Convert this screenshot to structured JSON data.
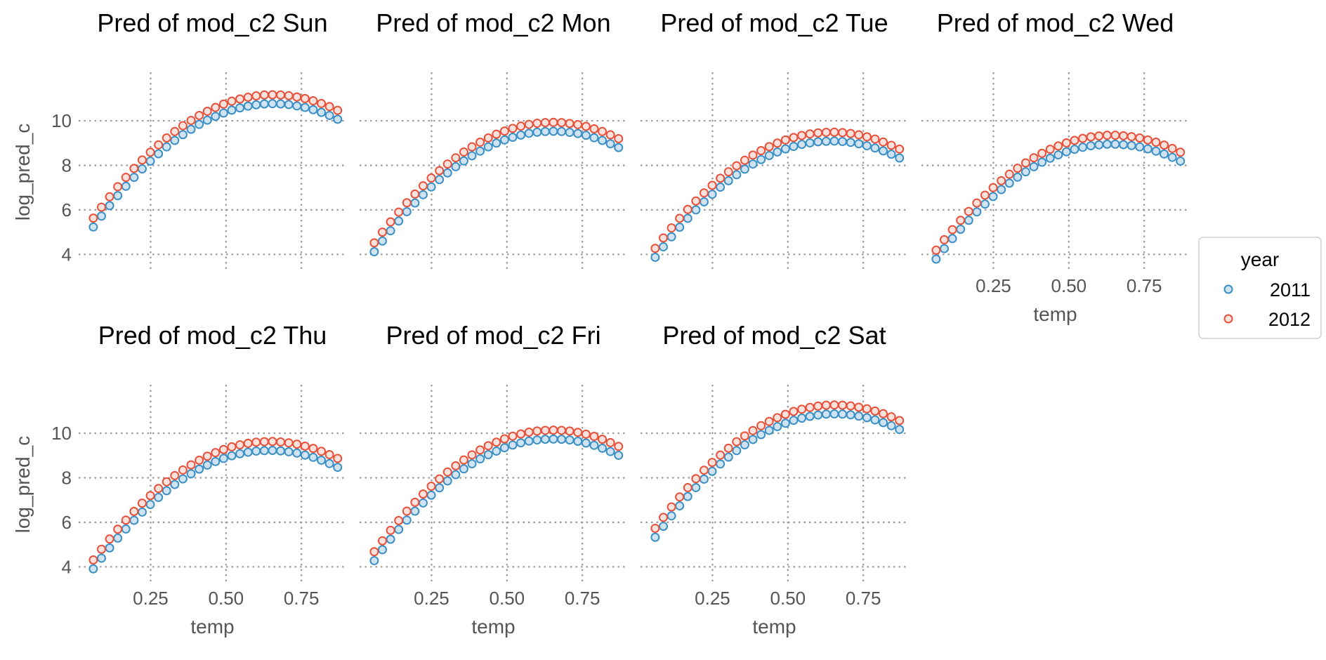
{
  "chart_data": {
    "type": "scatter",
    "layout": "facet-grid",
    "x_label": "temp",
    "y_label": "log_pred_c",
    "xlim": [
      0.03,
      0.88
    ],
    "ylim": [
      3.6,
      11.8
    ],
    "x_ticks": [
      0.25,
      0.5,
      0.75
    ],
    "x_tick_labels": [
      "0.25",
      "0.50",
      "0.75"
    ],
    "y_ticks": [
      4,
      6,
      8,
      10
    ],
    "y_tick_labels": [
      "4",
      "6",
      "8",
      "10"
    ],
    "grid": true,
    "legend": {
      "title": "year",
      "placement": "right",
      "entries": [
        {
          "label": "2011",
          "fill": "#cfe3f2",
          "stroke": "#3a8fc5"
        },
        {
          "label": "2012",
          "fill": "#fbe2dc",
          "stroke": "#e8503a"
        }
      ]
    },
    "x_values": [
      0.06,
      0.087,
      0.114,
      0.141,
      0.168,
      0.195,
      0.222,
      0.249,
      0.276,
      0.303,
      0.33,
      0.357,
      0.384,
      0.411,
      0.438,
      0.465,
      0.492,
      0.519,
      0.546,
      0.573,
      0.6,
      0.627,
      0.654,
      0.681,
      0.708,
      0.735,
      0.762,
      0.789,
      0.816,
      0.843,
      0.87
    ],
    "panels": [
      {
        "title": "Pred of mod_c2 Sun",
        "series": [
          {
            "name": "2011",
            "y": [
              5.23,
              5.72,
              6.19,
              6.64,
              7.06,
              7.46,
              7.84,
              8.19,
              8.52,
              8.83,
              9.12,
              9.38,
              9.62,
              9.84,
              10.03,
              10.2,
              10.35,
              10.48,
              10.58,
              10.66,
              10.72,
              10.76,
              10.77,
              10.76,
              10.73,
              10.67,
              10.6,
              10.5,
              10.38,
              10.24,
              10.07
            ]
          },
          {
            "name": "2012",
            "y": [
              5.63,
              6.12,
              6.59,
              7.04,
              7.46,
              7.86,
              8.24,
              8.59,
              8.92,
              9.23,
              9.52,
              9.78,
              10.02,
              10.24,
              10.43,
              10.6,
              10.75,
              10.88,
              10.98,
              11.06,
              11.12,
              11.16,
              11.17,
              11.16,
              11.13,
              11.07,
              11.0,
              10.9,
              10.78,
              10.64,
              10.47
            ]
          }
        ]
      },
      {
        "title": "Pred of mod_c2 Mon",
        "series": [
          {
            "name": "2011",
            "y": [
              4.12,
              4.6,
              5.06,
              5.5,
              5.92,
              6.31,
              6.68,
              7.03,
              7.36,
              7.66,
              7.94,
              8.2,
              8.43,
              8.64,
              8.83,
              9.0,
              9.14,
              9.26,
              9.36,
              9.44,
              9.49,
              9.52,
              9.53,
              9.52,
              9.48,
              9.43,
              9.35,
              9.24,
              9.12,
              8.97,
              8.8
            ]
          },
          {
            "name": "2012",
            "y": [
              4.52,
              5.0,
              5.46,
              5.9,
              6.32,
              6.71,
              7.08,
              7.43,
              7.76,
              8.06,
              8.34,
              8.6,
              8.83,
              9.04,
              9.23,
              9.4,
              9.54,
              9.66,
              9.76,
              9.84,
              9.89,
              9.92,
              9.93,
              9.92,
              9.88,
              9.83,
              9.75,
              9.64,
              9.52,
              9.37,
              9.2
            ]
          }
        ]
      },
      {
        "title": "Pred of mod_c2 Tue",
        "series": [
          {
            "name": "2011",
            "y": [
              3.87,
              4.34,
              4.79,
              5.22,
              5.62,
              6.0,
              6.36,
              6.7,
              7.02,
              7.31,
              7.58,
              7.83,
              8.06,
              8.26,
              8.44,
              8.6,
              8.74,
              8.85,
              8.94,
              9.01,
              9.06,
              9.08,
              9.09,
              9.07,
              9.03,
              8.97,
              8.88,
              8.78,
              8.65,
              8.5,
              8.33
            ]
          },
          {
            "name": "2012",
            "y": [
              4.27,
              4.74,
              5.19,
              5.62,
              6.02,
              6.4,
              6.76,
              7.1,
              7.42,
              7.71,
              7.98,
              8.23,
              8.46,
              8.66,
              8.84,
              9.0,
              9.14,
              9.25,
              9.34,
              9.41,
              9.46,
              9.48,
              9.49,
              9.47,
              9.43,
              9.37,
              9.28,
              9.18,
              9.05,
              8.9,
              8.73
            ]
          }
        ]
      },
      {
        "title": "Pred of mod_c2 Wed",
        "series": [
          {
            "name": "2011",
            "y": [
              3.79,
              4.26,
              4.71,
              5.13,
              5.53,
              5.91,
              6.26,
              6.6,
              6.91,
              7.2,
              7.47,
              7.71,
              7.94,
              8.14,
              8.32,
              8.47,
              8.61,
              8.72,
              8.81,
              8.88,
              8.92,
              8.95,
              8.95,
              8.93,
              8.89,
              8.83,
              8.74,
              8.64,
              8.51,
              8.36,
              8.19
            ]
          },
          {
            "name": "2012",
            "y": [
              4.19,
              4.66,
              5.11,
              5.53,
              5.93,
              6.31,
              6.66,
              7.0,
              7.31,
              7.6,
              7.87,
              8.11,
              8.34,
              8.54,
              8.72,
              8.87,
              9.01,
              9.12,
              9.21,
              9.28,
              9.32,
              9.35,
              9.35,
              9.33,
              9.29,
              9.23,
              9.14,
              9.04,
              8.91,
              8.76,
              8.59
            ]
          }
        ]
      },
      {
        "title": "Pred of mod_c2 Thu",
        "series": [
          {
            "name": "2011",
            "y": [
              3.91,
              4.39,
              4.85,
              5.29,
              5.7,
              6.09,
              6.46,
              6.8,
              7.12,
              7.42,
              7.7,
              7.95,
              8.18,
              8.39,
              8.57,
              8.73,
              8.87,
              8.99,
              9.08,
              9.15,
              9.2,
              9.22,
              9.23,
              9.21,
              9.17,
              9.11,
              9.02,
              8.92,
              8.79,
              8.64,
              8.47
            ]
          },
          {
            "name": "2012",
            "y": [
              4.31,
              4.79,
              5.25,
              5.69,
              6.1,
              6.49,
              6.86,
              7.2,
              7.52,
              7.82,
              8.1,
              8.35,
              8.58,
              8.79,
              8.97,
              9.13,
              9.27,
              9.39,
              9.48,
              9.55,
              9.6,
              9.62,
              9.63,
              9.61,
              9.57,
              9.51,
              9.42,
              9.32,
              9.19,
              9.04,
              8.87
            ]
          }
        ]
      },
      {
        "title": "Pred of mod_c2 Fri",
        "series": [
          {
            "name": "2011",
            "y": [
              4.28,
              4.77,
              5.24,
              5.68,
              6.1,
              6.5,
              6.87,
              7.22,
              7.55,
              7.86,
              8.14,
              8.4,
              8.63,
              8.85,
              9.04,
              9.2,
              9.35,
              9.47,
              9.57,
              9.65,
              9.7,
              9.73,
              9.74,
              9.73,
              9.7,
              9.64,
              9.56,
              9.46,
              9.33,
              9.18,
              9.01
            ]
          },
          {
            "name": "2012",
            "y": [
              4.68,
              5.17,
              5.64,
              6.08,
              6.5,
              6.9,
              7.27,
              7.62,
              7.95,
              8.26,
              8.54,
              8.8,
              9.03,
              9.25,
              9.44,
              9.6,
              9.75,
              9.87,
              9.97,
              10.05,
              10.1,
              10.13,
              10.14,
              10.13,
              10.1,
              10.04,
              9.96,
              9.86,
              9.73,
              9.58,
              9.41
            ]
          }
        ]
      },
      {
        "title": "Pred of mod_c2 Sat",
        "series": [
          {
            "name": "2011",
            "y": [
              5.33,
              5.82,
              6.29,
              6.74,
              7.16,
              7.56,
              7.94,
              8.29,
              8.62,
              8.93,
              9.22,
              9.48,
              9.72,
              9.94,
              10.13,
              10.3,
              10.45,
              10.58,
              10.68,
              10.76,
              10.82,
              10.86,
              10.87,
              10.86,
              10.83,
              10.77,
              10.7,
              10.6,
              10.48,
              10.34,
              10.17
            ]
          },
          {
            "name": "2012",
            "y": [
              5.73,
              6.22,
              6.69,
              7.14,
              7.56,
              7.96,
              8.34,
              8.69,
              9.02,
              9.33,
              9.62,
              9.88,
              10.12,
              10.34,
              10.53,
              10.7,
              10.85,
              10.98,
              11.08,
              11.16,
              11.22,
              11.26,
              11.27,
              11.26,
              11.23,
              11.17,
              11.1,
              11.0,
              10.88,
              10.74,
              10.57
            ]
          }
        ]
      }
    ]
  }
}
